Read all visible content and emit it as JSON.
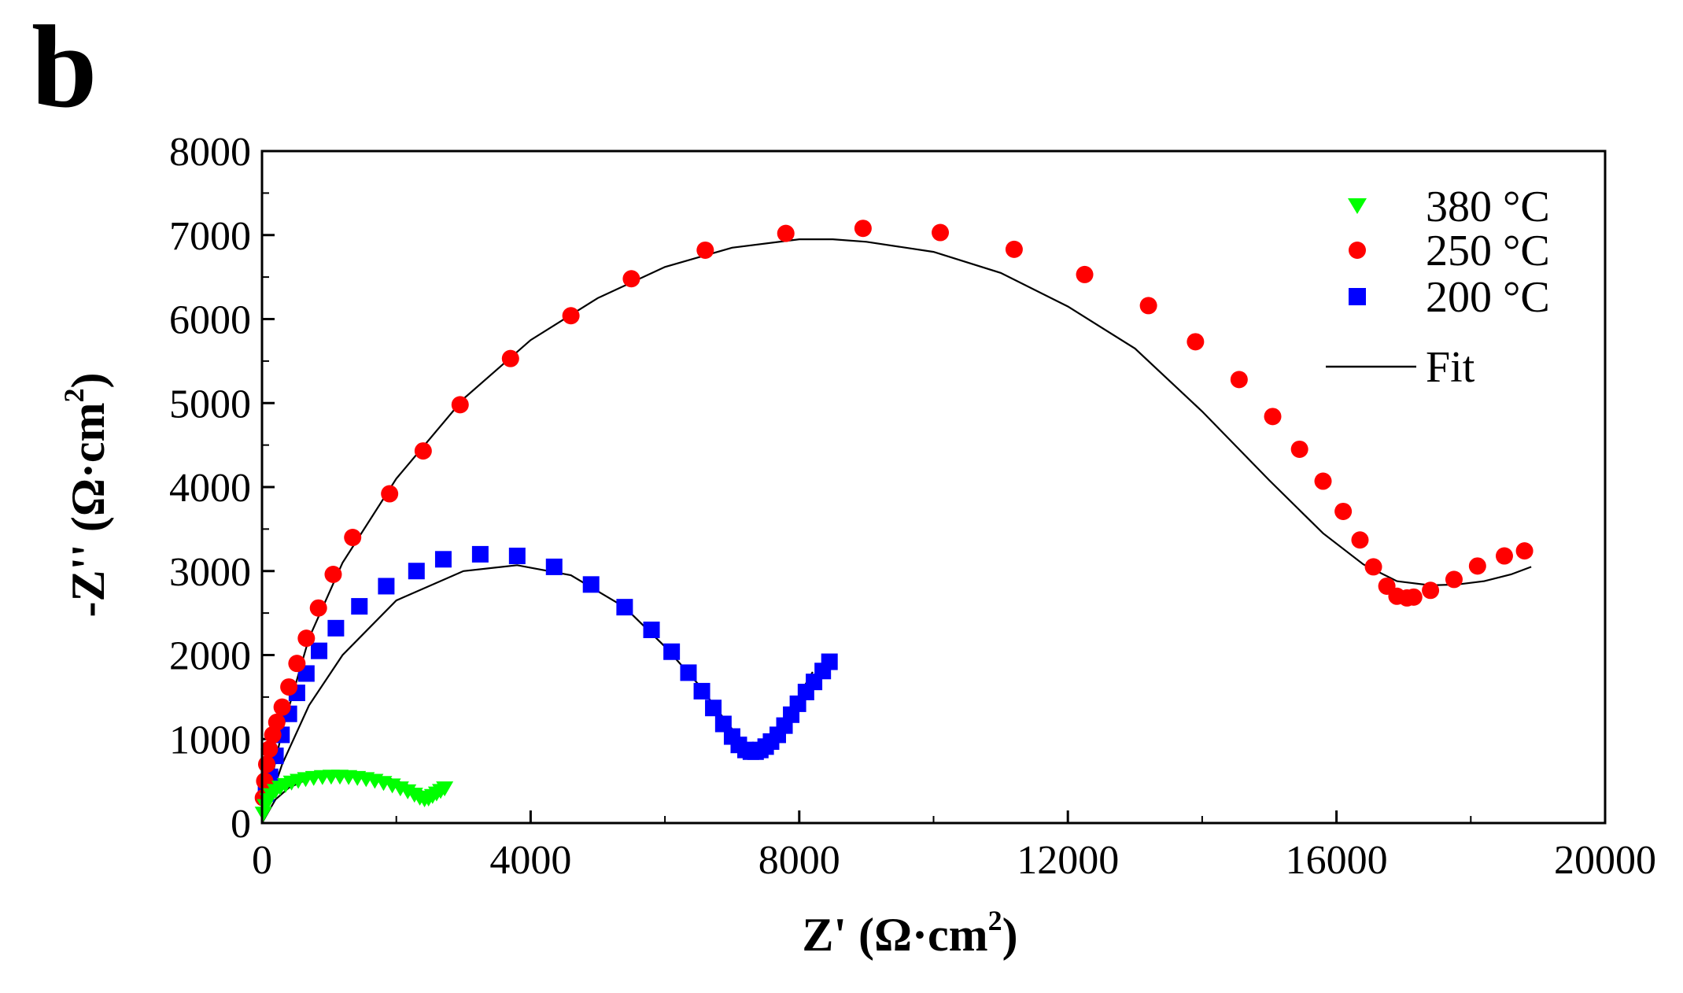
{
  "panel_label": "b",
  "chart_data": {
    "type": "scatter",
    "title": "",
    "xlabel": "Z' (Ω·cm²)",
    "ylabel": "-Z'' (Ω·cm²)",
    "xlabel_text": "Z' (Ω·cm",
    "ylabel_text": "-Z'' (Ω·cm",
    "unit_superscript": "2",
    "unit_close": ")",
    "xlim": [
      0,
      20000
    ],
    "ylim": [
      0,
      8000
    ],
    "xticks": [
      0,
      4000,
      8000,
      12000,
      16000,
      20000
    ],
    "yticks": [
      0,
      1000,
      2000,
      3000,
      4000,
      5000,
      6000,
      7000,
      8000
    ],
    "xtick_labels": [
      "0",
      "4000",
      "8000",
      "12000",
      "16000",
      "20000"
    ],
    "ytick_labels": [
      "0",
      "1000",
      "2000",
      "3000",
      "4000",
      "5000",
      "6000",
      "7000",
      "8000"
    ],
    "legend_position": "top-right",
    "series": [
      {
        "name": "380 °C",
        "marker": "triangle-down",
        "color": "#00ff00",
        "x": [
          20,
          50,
          90,
          140,
          200,
          270,
          350,
          440,
          540,
          650,
          770,
          900,
          1030,
          1160,
          1290,
          1420,
          1550,
          1680,
          1810,
          1940,
          2060,
          2170,
          2270,
          2350,
          2420,
          2480,
          2540,
          2600,
          2660,
          2720
        ],
        "y": [
          120,
          210,
          280,
          340,
          390,
          430,
          460,
          490,
          510,
          530,
          545,
          555,
          560,
          560,
          555,
          545,
          530,
          510,
          485,
          455,
          420,
          385,
          345,
          310,
          290,
          300,
          330,
          360,
          390,
          420
        ]
      },
      {
        "name": "250 °C",
        "marker": "circle",
        "color": "#ff0000",
        "x": [
          20,
          40,
          70,
          110,
          160,
          220,
          300,
          400,
          520,
          660,
          840,
          1060,
          1350,
          1900,
          2400,
          2950,
          3700,
          4600,
          5500,
          6600,
          7800,
          8950,
          10100,
          11200,
          12250,
          13200,
          13900,
          14550,
          15050,
          15450,
          15800,
          16100,
          16350,
          16550,
          16750,
          16900,
          17050,
          17150,
          17400,
          17750,
          18100,
          18500,
          18800
        ],
        "y": [
          300,
          500,
          700,
          880,
          1050,
          1200,
          1380,
          1620,
          1900,
          2200,
          2560,
          2960,
          3400,
          3920,
          4430,
          4980,
          5530,
          6040,
          6480,
          6820,
          7020,
          7080,
          7030,
          6830,
          6530,
          6160,
          5730,
          5280,
          4840,
          4450,
          4070,
          3710,
          3370,
          3050,
          2820,
          2700,
          2680,
          2690,
          2770,
          2900,
          3060,
          3180,
          3240
        ]
      },
      {
        "name": "200 °C",
        "marker": "square",
        "color": "#0000ff",
        "x": [
          60,
          120,
          200,
          290,
          400,
          520,
          660,
          850,
          1100,
          1450,
          1850,
          2300,
          2700,
          3250,
          3800,
          4350,
          4900,
          5400,
          5800,
          6100,
          6350,
          6550,
          6720,
          6870,
          7000,
          7100,
          7200,
          7280,
          7350,
          7420,
          7500,
          7580,
          7680,
          7780,
          7880,
          7980,
          8100,
          8220,
          8350,
          8450
        ],
        "y": [
          350,
          550,
          800,
          1050,
          1300,
          1550,
          1780,
          2050,
          2320,
          2580,
          2820,
          3000,
          3140,
          3200,
          3180,
          3050,
          2840,
          2570,
          2300,
          2040,
          1790,
          1570,
          1370,
          1180,
          1030,
          930,
          870,
          850,
          850,
          870,
          910,
          970,
          1050,
          1160,
          1290,
          1420,
          1560,
          1680,
          1810,
          1920
        ]
      }
    ],
    "fit": {
      "name": "Fit",
      "color": "#000000",
      "curves": [
        {
          "x": [
            0,
            200,
            400,
            700,
            1100,
            1500,
            1900,
            2150,
            2300,
            2450,
            2600
          ],
          "y": [
            0,
            280,
            420,
            530,
            590,
            590,
            530,
            460,
            400,
            360,
            340
          ]
        },
        {
          "x": [
            0,
            300,
            700,
            1200,
            2000,
            3000,
            3800,
            4600,
            5400,
            6000,
            6500,
            6900,
            7200,
            7350,
            7500,
            7800,
            8200
          ],
          "y": [
            0,
            700,
            1400,
            2000,
            2650,
            3000,
            3070,
            2950,
            2570,
            2100,
            1650,
            1220,
            920,
            850,
            900,
            1250,
            1800
          ]
        },
        {
          "x": [
            0,
            300,
            700,
            1200,
            2000,
            3000,
            4000,
            5000,
            6000,
            7000,
            8000,
            8500,
            9000,
            10000,
            11000,
            12000,
            13000,
            14000,
            15000,
            15800,
            16400,
            16900,
            17400,
            17800,
            18200,
            18600,
            18900
          ],
          "y": [
            0,
            1100,
            2200,
            3100,
            4100,
            5050,
            5750,
            6250,
            6620,
            6850,
            6950,
            6950,
            6920,
            6800,
            6550,
            6150,
            5650,
            4900,
            4080,
            3450,
            3080,
            2880,
            2830,
            2840,
            2880,
            2960,
            3050
          ]
        }
      ]
    }
  }
}
